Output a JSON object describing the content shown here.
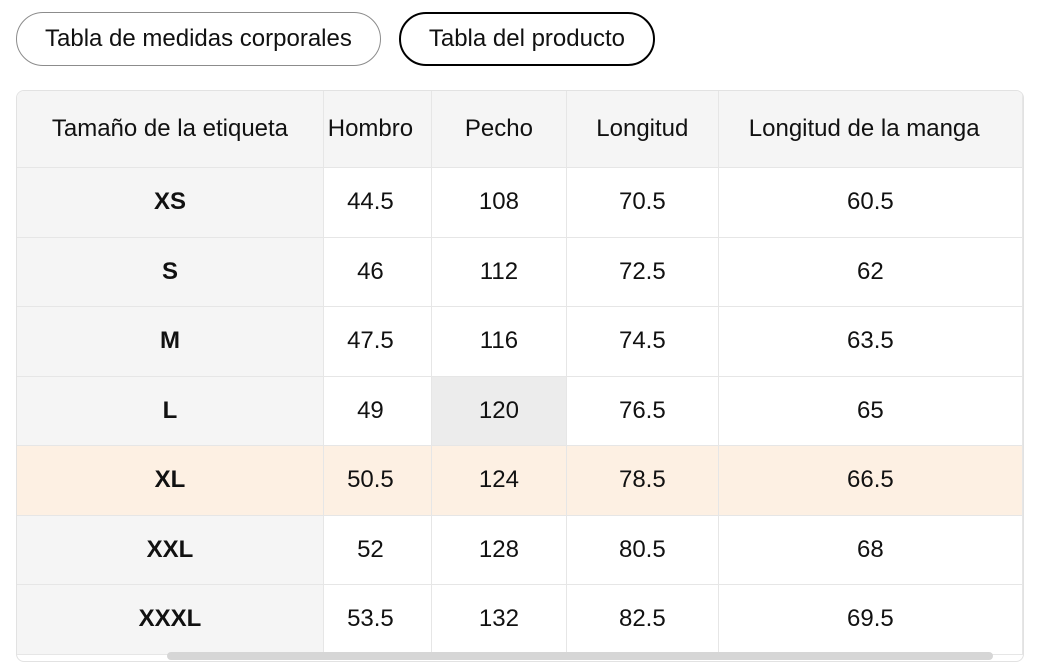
{
  "tabs": {
    "body_measurements": "Tabla de medidas corporales",
    "product": "Tabla del producto",
    "active": "product"
  },
  "table": {
    "headers": [
      "Tamaño de la etiqueta",
      "Hombro",
      "Pecho",
      "Longitud",
      "Longitud de la manga"
    ],
    "rows": [
      {
        "size": "XS",
        "shoulder": "44.5",
        "chest": "108",
        "length": "70.5",
        "sleeve": "60.5"
      },
      {
        "size": "S",
        "shoulder": "46",
        "chest": "112",
        "length": "72.5",
        "sleeve": "62"
      },
      {
        "size": "M",
        "shoulder": "47.5",
        "chest": "116",
        "length": "74.5",
        "sleeve": "63.5"
      },
      {
        "size": "L",
        "shoulder": "49",
        "chest": "120",
        "length": "76.5",
        "sleeve": "65"
      },
      {
        "size": "XL",
        "shoulder": "50.5",
        "chest": "124",
        "length": "78.5",
        "sleeve": "66.5"
      },
      {
        "size": "XXL",
        "shoulder": "52",
        "chest": "128",
        "length": "80.5",
        "sleeve": "68"
      },
      {
        "size": "XXXL",
        "shoulder": "53.5",
        "chest": "132",
        "length": "82.5",
        "sleeve": "69.5"
      }
    ],
    "highlighted_row": "XL",
    "highlight_color": "#fdf0e3"
  }
}
